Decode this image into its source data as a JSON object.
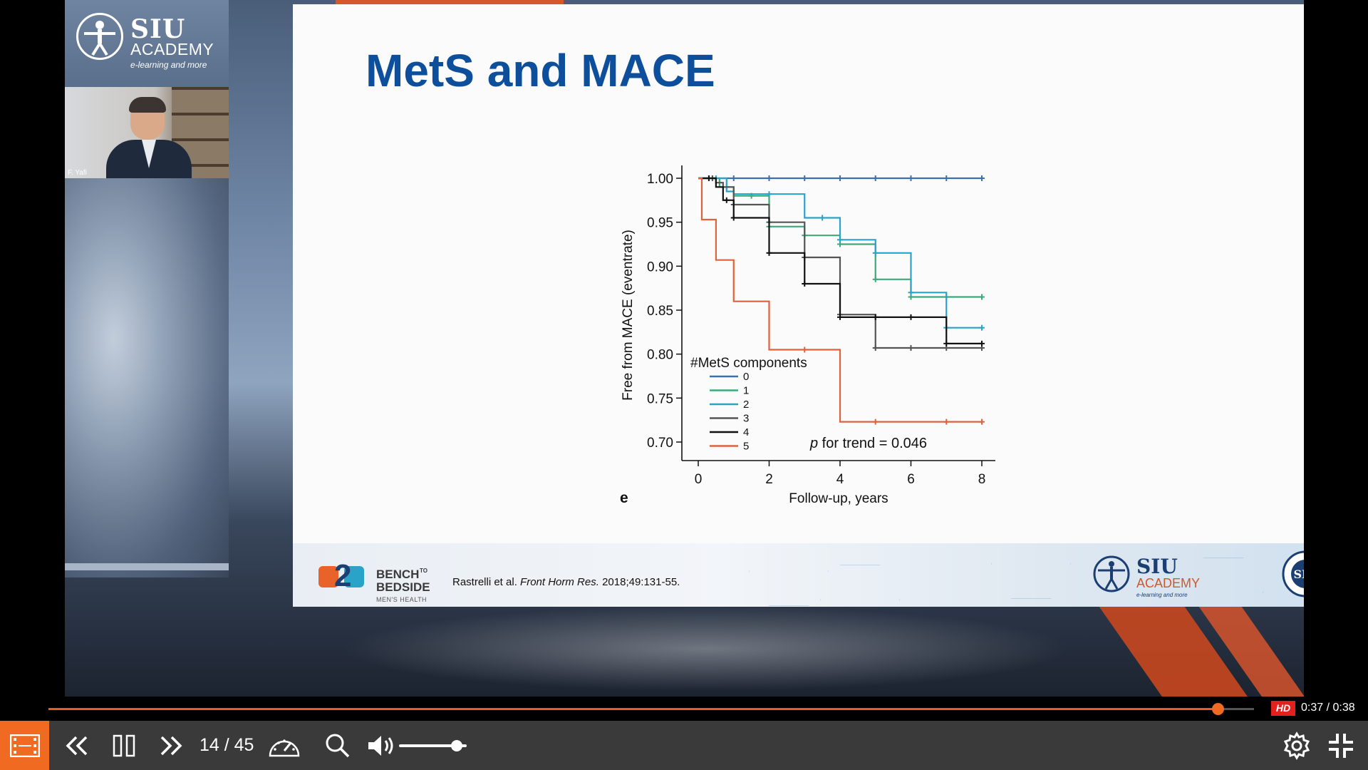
{
  "brand": {
    "name": "SIU",
    "subname": "ACADEMY",
    "tagline": "e-learning and more"
  },
  "speaker": {
    "name": "F. Yafi"
  },
  "slide": {
    "title": "MetS and MACE",
    "panel_label": "e",
    "footer": {
      "b2b_line1": "BENCH",
      "b2b_line2": "BEDSIDE",
      "b2b_line3": "MEN'S HEALTH",
      "b2b_to": "TO",
      "citation_authors": "Rastrelli et al.",
      "citation_journal": "Front Horm Res.",
      "citation_rest": "2018;49:131-55.",
      "siu_name": "SIU",
      "siu_academy": "ACADEMY",
      "siu_tagline": "e-learning and more",
      "seal_text": "SIU"
    }
  },
  "chart_data": {
    "type": "line",
    "subtype": "kaplan-meier step",
    "xlabel": "Follow-up, years",
    "ylabel": "Free from MACE (eventrate)",
    "xlim": [
      0,
      8
    ],
    "ylim": [
      0.7,
      1.0
    ],
    "xticks": [
      "0",
      "2",
      "4",
      "6",
      "8"
    ],
    "yticks": [
      "0.70",
      "0.75",
      "0.80",
      "0.85",
      "0.90",
      "0.95",
      "1.00"
    ],
    "legend_title": "#MetS components",
    "legend_position": "bottom-left",
    "annotation": {
      "italic": "p",
      "text": " for trend = 0.046"
    },
    "series": [
      {
        "name": "0",
        "color": "#3b6fb0",
        "steps": [
          [
            0,
            1.0
          ],
          [
            8,
            1.0
          ]
        ],
        "censor": [
          0.3,
          1,
          2,
          3,
          4,
          5,
          6,
          7,
          8
        ]
      },
      {
        "name": "1",
        "color": "#3daa7a",
        "steps": [
          [
            0,
            1.0
          ],
          [
            0.6,
            0.99
          ],
          [
            1,
            0.98
          ],
          [
            2,
            0.945
          ],
          [
            3,
            0.935
          ],
          [
            4,
            0.925
          ],
          [
            5,
            0.885
          ],
          [
            6,
            0.865
          ],
          [
            7,
            0.865
          ],
          [
            8,
            0.865
          ]
        ],
        "censor": [
          0.4,
          1.5,
          2,
          3,
          4,
          5,
          6,
          7,
          8
        ]
      },
      {
        "name": "2",
        "color": "#2aa3c8",
        "steps": [
          [
            0,
            1.0
          ],
          [
            0.8,
            0.985
          ],
          [
            1,
            0.982
          ],
          [
            3,
            0.955
          ],
          [
            4,
            0.93
          ],
          [
            5,
            0.915
          ],
          [
            6,
            0.87
          ],
          [
            7,
            0.83
          ],
          [
            8,
            0.83
          ]
        ],
        "censor": [
          0.5,
          2,
          3.5,
          4,
          5,
          6,
          7,
          8
        ]
      },
      {
        "name": "3",
        "color": "#555555",
        "steps": [
          [
            0,
            1.0
          ],
          [
            0.5,
            0.995
          ],
          [
            0.7,
            0.99
          ],
          [
            1,
            0.97
          ],
          [
            2,
            0.95
          ],
          [
            3,
            0.91
          ],
          [
            4,
            0.845
          ],
          [
            5,
            0.807
          ],
          [
            7,
            0.807
          ],
          [
            8,
            0.807
          ]
        ],
        "censor": [
          0.4,
          1,
          2,
          3,
          4,
          5,
          6,
          7,
          8
        ]
      },
      {
        "name": "4",
        "color": "#111111",
        "steps": [
          [
            0,
            1.0
          ],
          [
            0.5,
            0.99
          ],
          [
            0.7,
            0.975
          ],
          [
            1,
            0.955
          ],
          [
            2,
            0.915
          ],
          [
            3,
            0.88
          ],
          [
            4,
            0.842
          ],
          [
            7,
            0.812
          ],
          [
            8,
            0.812
          ]
        ],
        "censor": [
          0.3,
          0.8,
          1,
          2,
          3,
          4,
          5,
          6,
          7,
          8
        ]
      },
      {
        "name": "5",
        "color": "#e0623a",
        "steps": [
          [
            0,
            1.0
          ],
          [
            0.1,
            0.953
          ],
          [
            0.5,
            0.907
          ],
          [
            1,
            0.86
          ],
          [
            2,
            0.805
          ],
          [
            4,
            0.723
          ],
          [
            8,
            0.723
          ]
        ],
        "censor": [
          3,
          5,
          7,
          8
        ]
      }
    ]
  },
  "player": {
    "progress": 0.97,
    "hd": "HD",
    "time_current": "0:37",
    "time_sep": " / ",
    "time_total": "0:38",
    "page_current": "14",
    "page_sep": " / ",
    "page_total": "45",
    "volume": 0.85,
    "icons": [
      "film-icon",
      "rewind-icon",
      "pause-icon",
      "fast-forward-icon",
      "speed-icon",
      "search-icon",
      "volume-icon",
      "gear-icon",
      "exit-fullscreen-icon"
    ],
    "accent": "#f06a22"
  }
}
